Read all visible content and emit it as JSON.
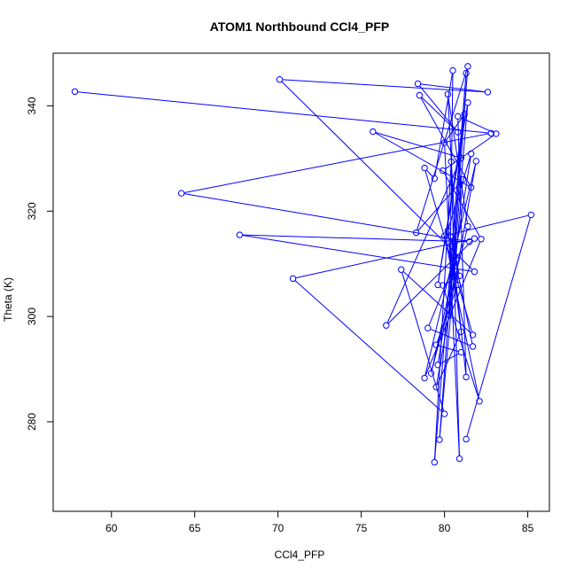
{
  "chart_data": {
    "type": "line",
    "title": "ATOM1 Northbound CCl4_PFP",
    "xlabel": "CCl4_PFP",
    "ylabel": "Theta (K)",
    "xlim": [
      56.5,
      86.3
    ],
    "ylim": [
      263,
      350
    ],
    "x_ticks": [
      60,
      65,
      70,
      75,
      80,
      85
    ],
    "y_ticks": [
      280,
      300,
      320,
      340
    ],
    "grid": false,
    "marker": "open-circle",
    "line_color": "#0000ff",
    "x": [
      57.8,
      82.8,
      64.2,
      81.5,
      67.7,
      81.8,
      70.1,
      82.6,
      78.4,
      80.8,
      78.5,
      81.6,
      75.7,
      81.0,
      76.5,
      81.8,
      70.9,
      80.0,
      77.4,
      81.7,
      78.8,
      79.4,
      80.5,
      80.3,
      81.4,
      78.3,
      81.1,
      79.7,
      81.3,
      79.4,
      80.4,
      80.9,
      80.0,
      81.2,
      79.6,
      81.4,
      80.6,
      81.7,
      79.0,
      80.7,
      79.2,
      81.4,
      80.2,
      80.8,
      79.5,
      81.0,
      79.6,
      81.6,
      80.2,
      81.0,
      79.5,
      81.9,
      78.8,
      82.2,
      79.9,
      83.1,
      80.8,
      81.3,
      80.4,
      80.9,
      79.9,
      82.1,
      80.0,
      85.2,
      81.3
    ],
    "y": [
      342.7,
      334.8,
      323.4,
      314.2,
      315.5,
      308.5,
      345.0,
      342.6,
      344.2,
      335.0,
      342.0,
      324.5,
      335.1,
      330.1,
      298.3,
      314.8,
      307.2,
      281.5,
      308.9,
      296.5,
      328.2,
      326.2,
      346.7,
      300.2,
      347.5,
      315.9,
      326.0,
      276.6,
      346.2,
      272.3,
      329.4,
      273.0,
      333.0,
      338.4,
      306.0,
      340.6,
      311.4,
      294.3,
      297.8,
      310.8,
      289.2,
      317.1,
      342.2,
      306.0,
      294.6,
      293.2,
      290.8,
      330.9,
      316.3,
      297.1,
      286.6,
      329.5,
      288.3,
      314.7,
      327.7,
      334.7,
      338.0,
      288.5,
      315.1,
      307.7,
      305.9,
      283.9,
      315.3,
      319.3,
      276.7
    ]
  }
}
